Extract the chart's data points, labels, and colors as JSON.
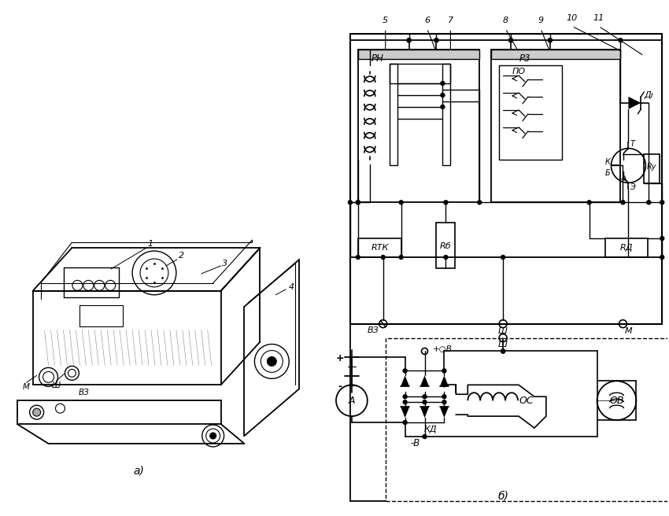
{
  "bg_color": "#ffffff",
  "fig_width": 8.5,
  "fig_height": 6.56,
  "labels": {
    "part_a": "a)",
    "part_b": "б)",
    "RN": "PH",
    "R3": "P3",
    "RTK": "RТК",
    "RB": "Rб",
    "RD": "RД",
    "VZ": "ВЗ",
    "Sh": "Ш",
    "M_label": "М",
    "PO": "ПО",
    "D1": "Дı",
    "K_label": "К",
    "T_label": "Т",
    "E_label": "Э",
    "B_label": "Б",
    "Ry": "Rу",
    "OC": "ОС",
    "OB": "ОВ",
    "KD": "КД",
    "plus_B": "+",
    "minus_B": "-В",
    "plus_V": "+○B",
    "A_label": "A",
    "num1": "1",
    "num2": "2",
    "num3": "3",
    "num4": "4",
    "num5": "5",
    "num6": "6",
    "num7": "7",
    "num8": "8",
    "num9": "9",
    "num10": "10",
    "num11": "11"
  }
}
